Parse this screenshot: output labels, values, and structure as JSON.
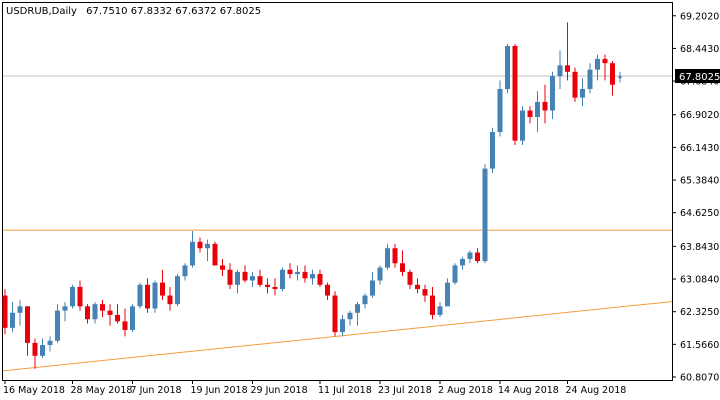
{
  "chart_data": {
    "type": "candlestick",
    "symbol": "USDRUB,Daily",
    "ohlc_label": "67.7510 67.8332 67.6372 67.8025",
    "current_price": 67.8025,
    "current_price_label": "67.8025",
    "ylim": [
      60.807,
      69.22
    ],
    "y_ticks": [
      "69.2020",
      "68.4430",
      "67.6840",
      "66.9020",
      "66.1430",
      "65.3840",
      "64.6250",
      "63.8430",
      "63.0840",
      "62.3250",
      "61.5660",
      "60.8070"
    ],
    "x_ticks": [
      "16 May 2018",
      "28 May 2018",
      "7 Jun 2018",
      "19 Jun 2018",
      "29 Jun 2018",
      "11 Jul 2018",
      "23 Jul 2018",
      "2 Aug 2018",
      "14 Aug 2018",
      "24 Aug 2018"
    ],
    "horizontal_line": {
      "price": 64.22,
      "color": "#f39c3c"
    },
    "trend_line": {
      "from_price": 60.95,
      "to_price": 62.56,
      "color": "#f39c3c"
    },
    "bull_color": "#4682b4",
    "bear_color": "#e8000b",
    "candles": [
      [
        62.7,
        62.85,
        61.8,
        61.95
      ],
      [
        61.95,
        62.55,
        61.85,
        62.3
      ],
      [
        62.3,
        62.6,
        62.0,
        62.45
      ],
      [
        62.45,
        62.45,
        61.3,
        61.6
      ],
      [
        61.6,
        61.7,
        61.0,
        61.3
      ],
      [
        61.3,
        61.7,
        61.25,
        61.55
      ],
      [
        61.55,
        61.75,
        61.4,
        61.65
      ],
      [
        61.65,
        62.5,
        61.6,
        62.35
      ],
      [
        62.35,
        62.55,
        62.1,
        62.45
      ],
      [
        62.45,
        62.95,
        62.4,
        62.9
      ],
      [
        62.9,
        63.05,
        62.35,
        62.45
      ],
      [
        62.45,
        62.5,
        62.05,
        62.15
      ],
      [
        62.15,
        62.55,
        62.05,
        62.5
      ],
      [
        62.5,
        62.6,
        62.2,
        62.35
      ],
      [
        62.35,
        62.5,
        62.0,
        62.25
      ],
      [
        62.25,
        62.5,
        62.05,
        62.1
      ],
      [
        62.1,
        62.4,
        61.75,
        61.9
      ],
      [
        61.9,
        62.5,
        61.85,
        62.45
      ],
      [
        62.45,
        63.0,
        62.4,
        62.95
      ],
      [
        62.95,
        63.1,
        62.3,
        62.4
      ],
      [
        62.4,
        63.05,
        62.3,
        63.0
      ],
      [
        63.0,
        63.3,
        62.6,
        62.7
      ],
      [
        62.7,
        62.9,
        62.35,
        62.5
      ],
      [
        62.5,
        63.2,
        62.45,
        63.15
      ],
      [
        63.15,
        63.45,
        63.05,
        63.4
      ],
      [
        63.4,
        64.2,
        63.35,
        63.95
      ],
      [
        63.95,
        64.05,
        63.7,
        63.8
      ],
      [
        63.8,
        64.0,
        63.5,
        63.9
      ],
      [
        63.9,
        63.95,
        63.4,
        63.4
      ],
      [
        63.4,
        63.55,
        63.15,
        63.3
      ],
      [
        63.3,
        63.45,
        62.85,
        62.95
      ],
      [
        62.95,
        63.3,
        62.75,
        63.25
      ],
      [
        63.25,
        63.4,
        63.0,
        63.05
      ],
      [
        63.05,
        63.25,
        62.9,
        63.15
      ],
      [
        63.15,
        63.3,
        62.9,
        62.95
      ],
      [
        62.95,
        63.1,
        62.75,
        62.9
      ],
      [
        62.9,
        63.1,
        62.7,
        62.85
      ],
      [
        62.85,
        63.35,
        62.8,
        63.3
      ],
      [
        63.3,
        63.45,
        63.1,
        63.2
      ],
      [
        63.2,
        63.4,
        63.05,
        63.25
      ],
      [
        63.25,
        63.4,
        63.0,
        63.1
      ],
      [
        63.1,
        63.3,
        62.95,
        63.2
      ],
      [
        63.2,
        63.3,
        62.9,
        62.95
      ],
      [
        62.95,
        63.0,
        62.6,
        62.7
      ],
      [
        62.7,
        62.8,
        61.75,
        61.85
      ],
      [
        61.85,
        62.25,
        61.75,
        62.15
      ],
      [
        62.15,
        62.35,
        62.0,
        62.3
      ],
      [
        62.3,
        62.55,
        62.0,
        62.5
      ],
      [
        62.5,
        62.75,
        62.4,
        62.7
      ],
      [
        62.7,
        63.25,
        62.65,
        63.05
      ],
      [
        63.05,
        63.4,
        62.95,
        63.35
      ],
      [
        63.35,
        63.9,
        63.3,
        63.8
      ],
      [
        63.8,
        63.9,
        63.35,
        63.45
      ],
      [
        63.45,
        63.75,
        63.15,
        63.25
      ],
      [
        63.25,
        63.3,
        62.85,
        62.95
      ],
      [
        62.95,
        63.1,
        62.75,
        62.85
      ],
      [
        62.85,
        62.95,
        62.55,
        62.7
      ],
      [
        62.7,
        62.9,
        62.15,
        62.25
      ],
      [
        62.25,
        62.55,
        62.2,
        62.45
      ],
      [
        62.45,
        63.1,
        62.45,
        63.0
      ],
      [
        63.0,
        63.45,
        62.95,
        63.4
      ],
      [
        63.4,
        63.6,
        63.3,
        63.55
      ],
      [
        63.55,
        63.75,
        63.45,
        63.7
      ],
      [
        63.7,
        63.8,
        63.45,
        63.5
      ],
      [
        63.5,
        65.75,
        63.45,
        65.65
      ],
      [
        65.65,
        66.6,
        65.55,
        66.5
      ],
      [
        66.5,
        67.7,
        66.4,
        67.5
      ],
      [
        67.5,
        68.55,
        67.4,
        68.5
      ],
      [
        68.5,
        68.55,
        66.2,
        66.3
      ],
      [
        66.3,
        67.1,
        66.2,
        67.0
      ],
      [
        67.0,
        67.1,
        66.7,
        66.85
      ],
      [
        66.85,
        67.45,
        66.5,
        67.2
      ],
      [
        67.2,
        67.6,
        66.7,
        67.0
      ],
      [
        67.0,
        67.9,
        66.8,
        67.8
      ],
      [
        67.8,
        68.4,
        67.5,
        68.05
      ],
      [
        68.05,
        69.05,
        67.7,
        67.9
      ],
      [
        67.9,
        68.0,
        67.2,
        67.3
      ],
      [
        67.3,
        67.75,
        67.1,
        67.5
      ],
      [
        67.5,
        68.1,
        67.4,
        67.95
      ],
      [
        67.95,
        68.3,
        67.7,
        68.2
      ],
      [
        68.2,
        68.3,
        67.7,
        68.1
      ],
      [
        68.1,
        68.15,
        67.35,
        67.6
      ],
      [
        67.75,
        67.9,
        67.65,
        67.8
      ]
    ]
  }
}
